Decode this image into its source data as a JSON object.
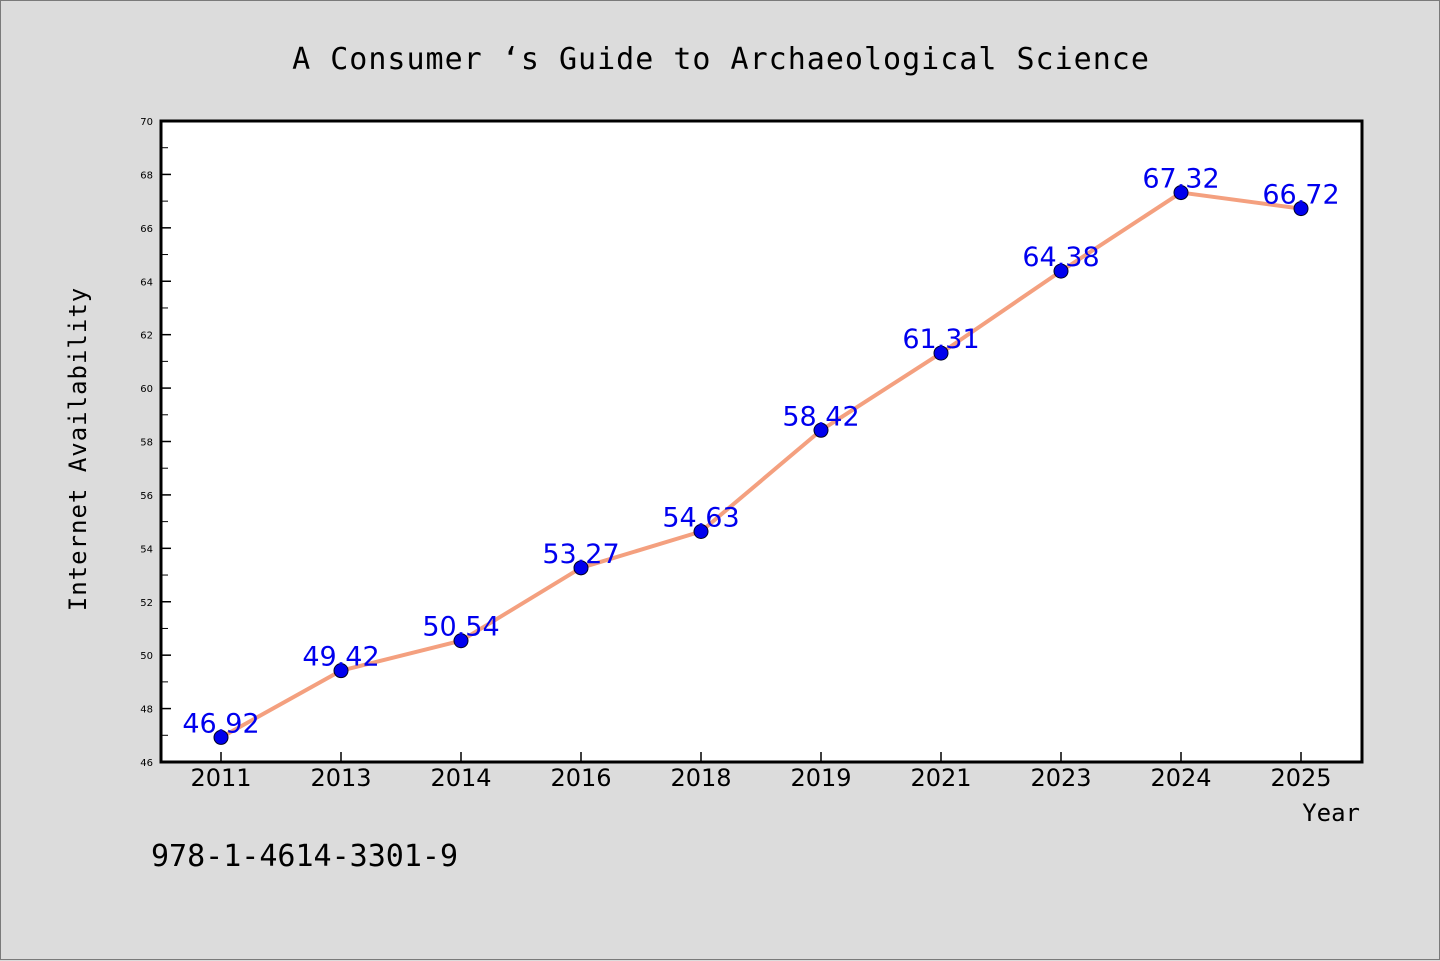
{
  "chart_data": {
    "type": "line",
    "title": "A Consumer ‘s Guide to Archaeological Science",
    "xlabel": "Year",
    "ylabel": "Internet Availability",
    "categories": [
      "2011",
      "2013",
      "2014",
      "2016",
      "2018",
      "2019",
      "2021",
      "2023",
      "2024",
      "2025"
    ],
    "values": [
      46.92,
      49.42,
      50.54,
      53.27,
      54.63,
      58.42,
      61.31,
      64.38,
      67.32,
      66.72
    ],
    "ylim": [
      46,
      70
    ],
    "yticks": [
      46,
      48,
      50,
      52,
      54,
      56,
      58,
      60,
      62,
      64,
      66,
      68,
      70
    ],
    "data_labels": [
      "46.92",
      "49.42",
      "50.54",
      "53.27",
      "54.63",
      "58.42",
      "61.31",
      "64.38",
      "67.32",
      "66.72"
    ],
    "grid": false,
    "line_color": "#f4a07f",
    "marker_color": "#0000ee",
    "label_color": "#0000ee"
  },
  "annotation": "978-1-4614-3301-9"
}
